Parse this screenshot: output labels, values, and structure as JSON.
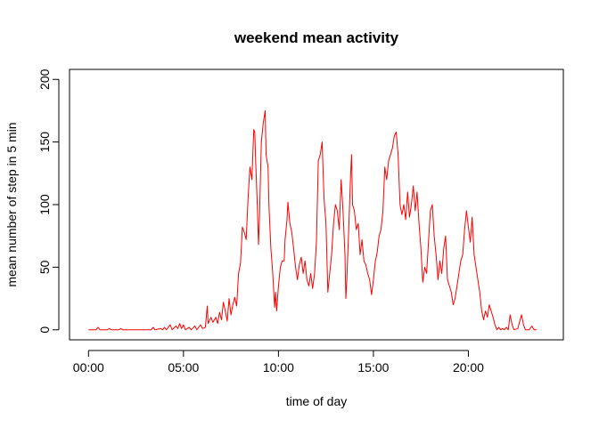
{
  "chart_data": {
    "type": "line",
    "title": "weekend mean activity",
    "xlabel": "time of day",
    "ylabel": "mean number of step in 5 min",
    "x_unit": "hours",
    "xlim": [
      -1,
      25
    ],
    "ylim": [
      -8,
      208
    ],
    "x_ticks": [
      {
        "value": 0,
        "label": "00:00"
      },
      {
        "value": 5,
        "label": "05:00"
      },
      {
        "value": 10,
        "label": "10:00"
      },
      {
        "value": 15,
        "label": "15:00"
      },
      {
        "value": 20,
        "label": "20:00"
      }
    ],
    "y_ticks": [
      {
        "value": 0,
        "label": "0"
      },
      {
        "value": 50,
        "label": "50"
      },
      {
        "value": 100,
        "label": "100"
      },
      {
        "value": 150,
        "label": "150"
      },
      {
        "value": 200,
        "label": "200"
      }
    ],
    "grid": false,
    "series": [
      {
        "color": "#ff0000",
        "points": [
          [
            0,
            0
          ],
          [
            0.4,
            0
          ],
          [
            0.5,
            2
          ],
          [
            0.6,
            0
          ],
          [
            1.0,
            0
          ],
          [
            1.1,
            1
          ],
          [
            1.2,
            0
          ],
          [
            1.6,
            0
          ],
          [
            1.7,
            1
          ],
          [
            1.8,
            0
          ],
          [
            3.3,
            0
          ],
          [
            3.4,
            2
          ],
          [
            3.5,
            0
          ],
          [
            3.8,
            1
          ],
          [
            3.9,
            0
          ],
          [
            4.0,
            2
          ],
          [
            4.1,
            0
          ],
          [
            4.3,
            4
          ],
          [
            4.4,
            0
          ],
          [
            4.6,
            3
          ],
          [
            4.7,
            1
          ],
          [
            4.8,
            5
          ],
          [
            4.9,
            1
          ],
          [
            5.0,
            4
          ],
          [
            5.1,
            0
          ],
          [
            5.3,
            2
          ],
          [
            5.4,
            0
          ],
          [
            5.6,
            3
          ],
          [
            5.7,
            0
          ],
          [
            5.9,
            4
          ],
          [
            6.0,
            1
          ],
          [
            6.15,
            2
          ],
          [
            6.25,
            19
          ],
          [
            6.3,
            5
          ],
          [
            6.45,
            10
          ],
          [
            6.55,
            6
          ],
          [
            6.7,
            10
          ],
          [
            6.8,
            5
          ],
          [
            6.9,
            14
          ],
          [
            7.0,
            8
          ],
          [
            7.1,
            22
          ],
          [
            7.2,
            15
          ],
          [
            7.3,
            7
          ],
          [
            7.4,
            25
          ],
          [
            7.5,
            12
          ],
          [
            7.6,
            20
          ],
          [
            7.7,
            26
          ],
          [
            7.8,
            19
          ],
          [
            7.9,
            45
          ],
          [
            8.0,
            53
          ],
          [
            8.1,
            82
          ],
          [
            8.2,
            78
          ],
          [
            8.3,
            72
          ],
          [
            8.4,
            105
          ],
          [
            8.5,
            130
          ],
          [
            8.6,
            120
          ],
          [
            8.7,
            160
          ],
          [
            8.75,
            158
          ],
          [
            8.8,
            135
          ],
          [
            8.9,
            95
          ],
          [
            8.95,
            68
          ],
          [
            9.0,
            90
          ],
          [
            9.1,
            150
          ],
          [
            9.2,
            165
          ],
          [
            9.3,
            175
          ],
          [
            9.35,
            140
          ],
          [
            9.45,
            130
          ],
          [
            9.5,
            100
          ],
          [
            9.6,
            65
          ],
          [
            9.7,
            45
          ],
          [
            9.8,
            18
          ],
          [
            9.85,
            30
          ],
          [
            9.9,
            15
          ],
          [
            10.0,
            35
          ],
          [
            10.1,
            50
          ],
          [
            10.2,
            55
          ],
          [
            10.3,
            55
          ],
          [
            10.35,
            72
          ],
          [
            10.45,
            88
          ],
          [
            10.5,
            102
          ],
          [
            10.6,
            85
          ],
          [
            10.7,
            78
          ],
          [
            10.8,
            65
          ],
          [
            10.9,
            50
          ],
          [
            11.0,
            40
          ],
          [
            11.1,
            52
          ],
          [
            11.2,
            58
          ],
          [
            11.3,
            45
          ],
          [
            11.4,
            55
          ],
          [
            11.5,
            40
          ],
          [
            11.6,
            35
          ],
          [
            11.7,
            45
          ],
          [
            11.8,
            33
          ],
          [
            11.9,
            45
          ],
          [
            12.0,
            70
          ],
          [
            12.1,
            135
          ],
          [
            12.2,
            140
          ],
          [
            12.3,
            150
          ],
          [
            12.4,
            105
          ],
          [
            12.5,
            85
          ],
          [
            12.6,
            30
          ],
          [
            12.7,
            45
          ],
          [
            12.8,
            60
          ],
          [
            12.9,
            85
          ],
          [
            13.0,
            100
          ],
          [
            13.1,
            95
          ],
          [
            13.2,
            80
          ],
          [
            13.3,
            120
          ],
          [
            13.4,
            95
          ],
          [
            13.5,
            60
          ],
          [
            13.55,
            25
          ],
          [
            13.6,
            40
          ],
          [
            13.7,
            80
          ],
          [
            13.8,
            125
          ],
          [
            13.85,
            140
          ],
          [
            13.9,
            100
          ],
          [
            14.0,
            95
          ],
          [
            14.1,
            80
          ],
          [
            14.2,
            85
          ],
          [
            14.3,
            60
          ],
          [
            14.4,
            72
          ],
          [
            14.5,
            55
          ],
          [
            14.6,
            52
          ],
          [
            14.7,
            45
          ],
          [
            14.8,
            40
          ],
          [
            14.9,
            28
          ],
          [
            15.0,
            40
          ],
          [
            15.1,
            55
          ],
          [
            15.2,
            62
          ],
          [
            15.3,
            75
          ],
          [
            15.4,
            80
          ],
          [
            15.5,
            95
          ],
          [
            15.6,
            130
          ],
          [
            15.7,
            120
          ],
          [
            15.8,
            135
          ],
          [
            15.9,
            140
          ],
          [
            16.0,
            145
          ],
          [
            16.1,
            155
          ],
          [
            16.2,
            158
          ],
          [
            16.3,
            140
          ],
          [
            16.4,
            100
          ],
          [
            16.5,
            92
          ],
          [
            16.6,
            100
          ],
          [
            16.7,
            88
          ],
          [
            16.8,
            110
          ],
          [
            16.9,
            90
          ],
          [
            17.0,
            100
          ],
          [
            17.1,
            115
          ],
          [
            17.2,
            95
          ],
          [
            17.3,
            110
          ],
          [
            17.4,
            85
          ],
          [
            17.5,
            65
          ],
          [
            17.6,
            38
          ],
          [
            17.7,
            50
          ],
          [
            17.8,
            45
          ],
          [
            17.9,
            70
          ],
          [
            18.0,
            95
          ],
          [
            18.1,
            100
          ],
          [
            18.2,
            75
          ],
          [
            18.3,
            60
          ],
          [
            18.4,
            40
          ],
          [
            18.5,
            55
          ],
          [
            18.6,
            45
          ],
          [
            18.7,
            65
          ],
          [
            18.8,
            75
          ],
          [
            18.9,
            40
          ],
          [
            19.0,
            35
          ],
          [
            19.1,
            30
          ],
          [
            19.2,
            20
          ],
          [
            19.3,
            25
          ],
          [
            19.4,
            35
          ],
          [
            19.5,
            45
          ],
          [
            19.6,
            55
          ],
          [
            19.7,
            60
          ],
          [
            19.8,
            80
          ],
          [
            19.9,
            95
          ],
          [
            20.0,
            82
          ],
          [
            20.1,
            70
          ],
          [
            20.2,
            90
          ],
          [
            20.3,
            60
          ],
          [
            20.4,
            50
          ],
          [
            20.5,
            40
          ],
          [
            20.6,
            30
          ],
          [
            20.7,
            15
          ],
          [
            20.8,
            8
          ],
          [
            20.9,
            15
          ],
          [
            21.0,
            10
          ],
          [
            21.1,
            20
          ],
          [
            21.2,
            15
          ],
          [
            21.3,
            10
          ],
          [
            21.4,
            4
          ],
          [
            21.5,
            0
          ],
          [
            21.6,
            2
          ],
          [
            21.7,
            0
          ],
          [
            21.8,
            1
          ],
          [
            21.9,
            0
          ],
          [
            22.0,
            2
          ],
          [
            22.1,
            0
          ],
          [
            22.2,
            12
          ],
          [
            22.3,
            4
          ],
          [
            22.4,
            0
          ],
          [
            22.6,
            1
          ],
          [
            22.8,
            12
          ],
          [
            22.9,
            4
          ],
          [
            23.0,
            0
          ],
          [
            23.2,
            0
          ],
          [
            23.35,
            3
          ],
          [
            23.45,
            0
          ],
          [
            23.6,
            0
          ]
        ]
      }
    ]
  }
}
